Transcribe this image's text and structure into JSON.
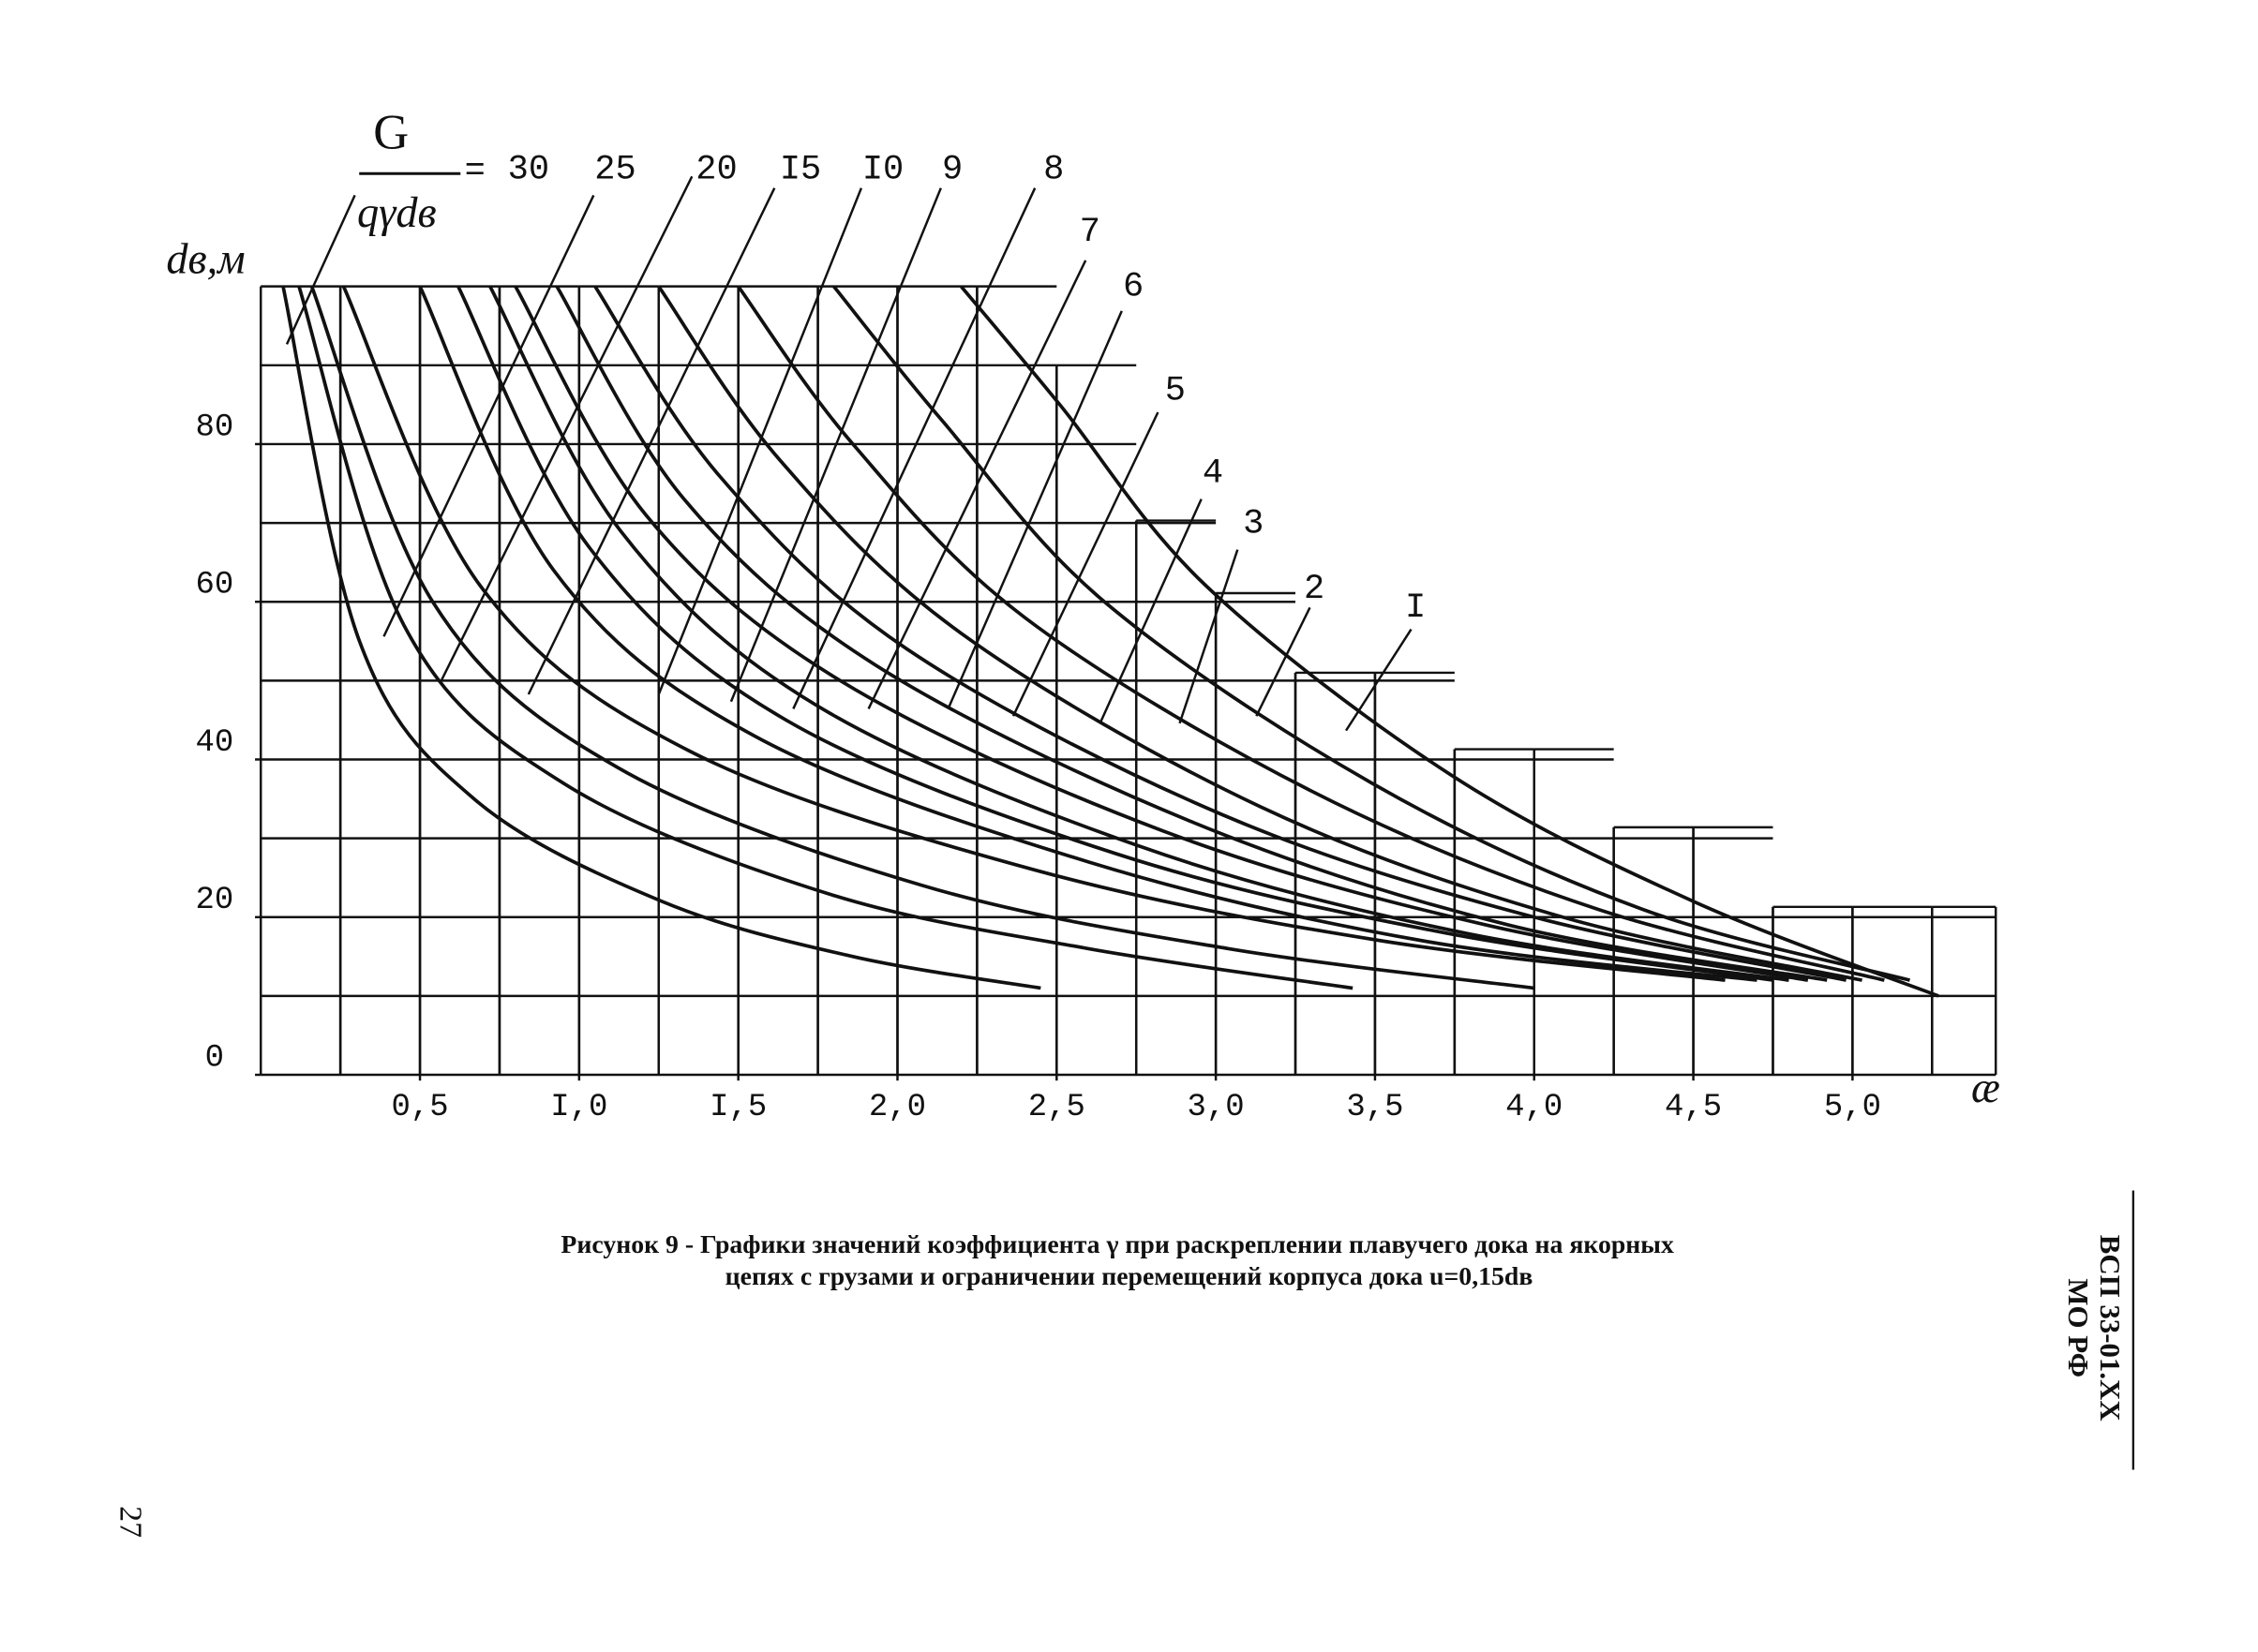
{
  "chart_data": {
    "type": "line",
    "legend_title": {
      "numerator": "G",
      "denominator": "qγdв",
      "sign": "="
    },
    "y_label": "dв,м",
    "x_label": "æ",
    "xlim": [
      0,
      5.45
    ],
    "ylim": [
      0,
      100
    ],
    "xticks": [
      {
        "value": 0.5,
        "label": "0,5"
      },
      {
        "value": 1.0,
        "label": "I,0"
      },
      {
        "value": 1.5,
        "label": "I,5"
      },
      {
        "value": 2.0,
        "label": "2,0"
      },
      {
        "value": 2.5,
        "label": "2,5"
      },
      {
        "value": 3.0,
        "label": "3,0"
      },
      {
        "value": 3.5,
        "label": "3,5"
      },
      {
        "value": 4.0,
        "label": "4,0"
      },
      {
        "value": 4.5,
        "label": "4,5"
      },
      {
        "value": 5.0,
        "label": "5,0"
      }
    ],
    "yticks": [
      0,
      20,
      40,
      60,
      80
    ],
    "color": "#111111",
    "series": [
      {
        "name": "30",
        "x": [
          0.07,
          0.31,
          0.67,
          1.26,
          1.86,
          2.45
        ],
        "values": [
          100,
          55,
          35,
          22,
          15,
          11
        ]
      },
      {
        "name": "25",
        "x": [
          0.12,
          0.45,
          0.95,
          1.78,
          2.6,
          3.43
        ],
        "values": [
          100,
          57,
          37,
          23,
          16,
          11
        ]
      },
      {
        "name": "20",
        "x": [
          0.16,
          0.54,
          1.12,
          2.08,
          3.04,
          4.0
        ],
        "values": [
          100,
          60,
          39,
          24,
          16,
          11
        ]
      },
      {
        "name": "I5",
        "x": [
          0.26,
          0.69,
          1.35,
          2.43,
          3.52,
          4.6
        ],
        "values": [
          100,
          62,
          41,
          26,
          17,
          12
        ]
      },
      {
        "name": "I0",
        "x": [
          0.5,
          0.92,
          1.55,
          2.6,
          3.65,
          4.7
        ],
        "values": [
          100,
          64,
          43,
          27,
          17,
          12
        ]
      },
      {
        "name": "9",
        "x": [
          0.62,
          1.03,
          1.65,
          2.69,
          3.72,
          4.75
        ],
        "values": [
          100,
          67,
          45,
          28,
          18,
          12
        ]
      },
      {
        "name": "8",
        "x": [
          0.72,
          1.13,
          1.74,
          2.76,
          3.78,
          4.8
        ],
        "values": [
          100,
          69,
          47,
          29,
          18,
          12
        ]
      },
      {
        "name": "7",
        "x": [
          0.8,
          1.21,
          1.82,
          2.83,
          3.85,
          4.86
        ],
        "values": [
          100,
          71,
          50,
          31,
          19,
          12
        ]
      },
      {
        "name": "6",
        "x": [
          0.93,
          1.33,
          1.93,
          2.93,
          3.92,
          4.92
        ],
        "values": [
          100,
          73,
          52,
          32,
          19,
          12
        ]
      },
      {
        "name": "5",
        "x": [
          1.05,
          1.44,
          2.03,
          3.02,
          4.0,
          4.98
        ],
        "values": [
          100,
          76,
          54,
          33,
          20,
          12
        ]
      },
      {
        "name": "4",
        "x": [
          1.25,
          1.63,
          2.2,
          3.14,
          4.09,
          5.03
        ],
        "values": [
          100,
          78,
          56,
          34,
          20,
          12
        ]
      },
      {
        "name": "3",
        "x": [
          1.5,
          1.86,
          2.4,
          3.3,
          4.2,
          5.1
        ],
        "values": [
          100,
          80,
          58,
          36,
          21,
          12
        ]
      },
      {
        "name": "2",
        "x": [
          1.8,
          2.14,
          2.65,
          3.49,
          4.34,
          5.18
        ],
        "values": [
          100,
          83,
          60,
          37,
          21,
          12
        ]
      },
      {
        "name": "I",
        "x": [
          2.2,
          2.51,
          2.97,
          3.74,
          4.5,
          5.27
        ],
        "values": [
          100,
          85,
          62,
          38,
          22,
          10
        ]
      }
    ]
  },
  "caption": [
    "Рисунок 9 - Графики значений коэффициента γ при раскреплении плавучего дока на якорных",
    "цепях с грузами и ограничении перемещений корпуса дока u=0,15dв"
  ],
  "side_label": {
    "code": "ВСП 33-01.ХХ",
    "org": "МО РФ"
  },
  "page_number": "27"
}
